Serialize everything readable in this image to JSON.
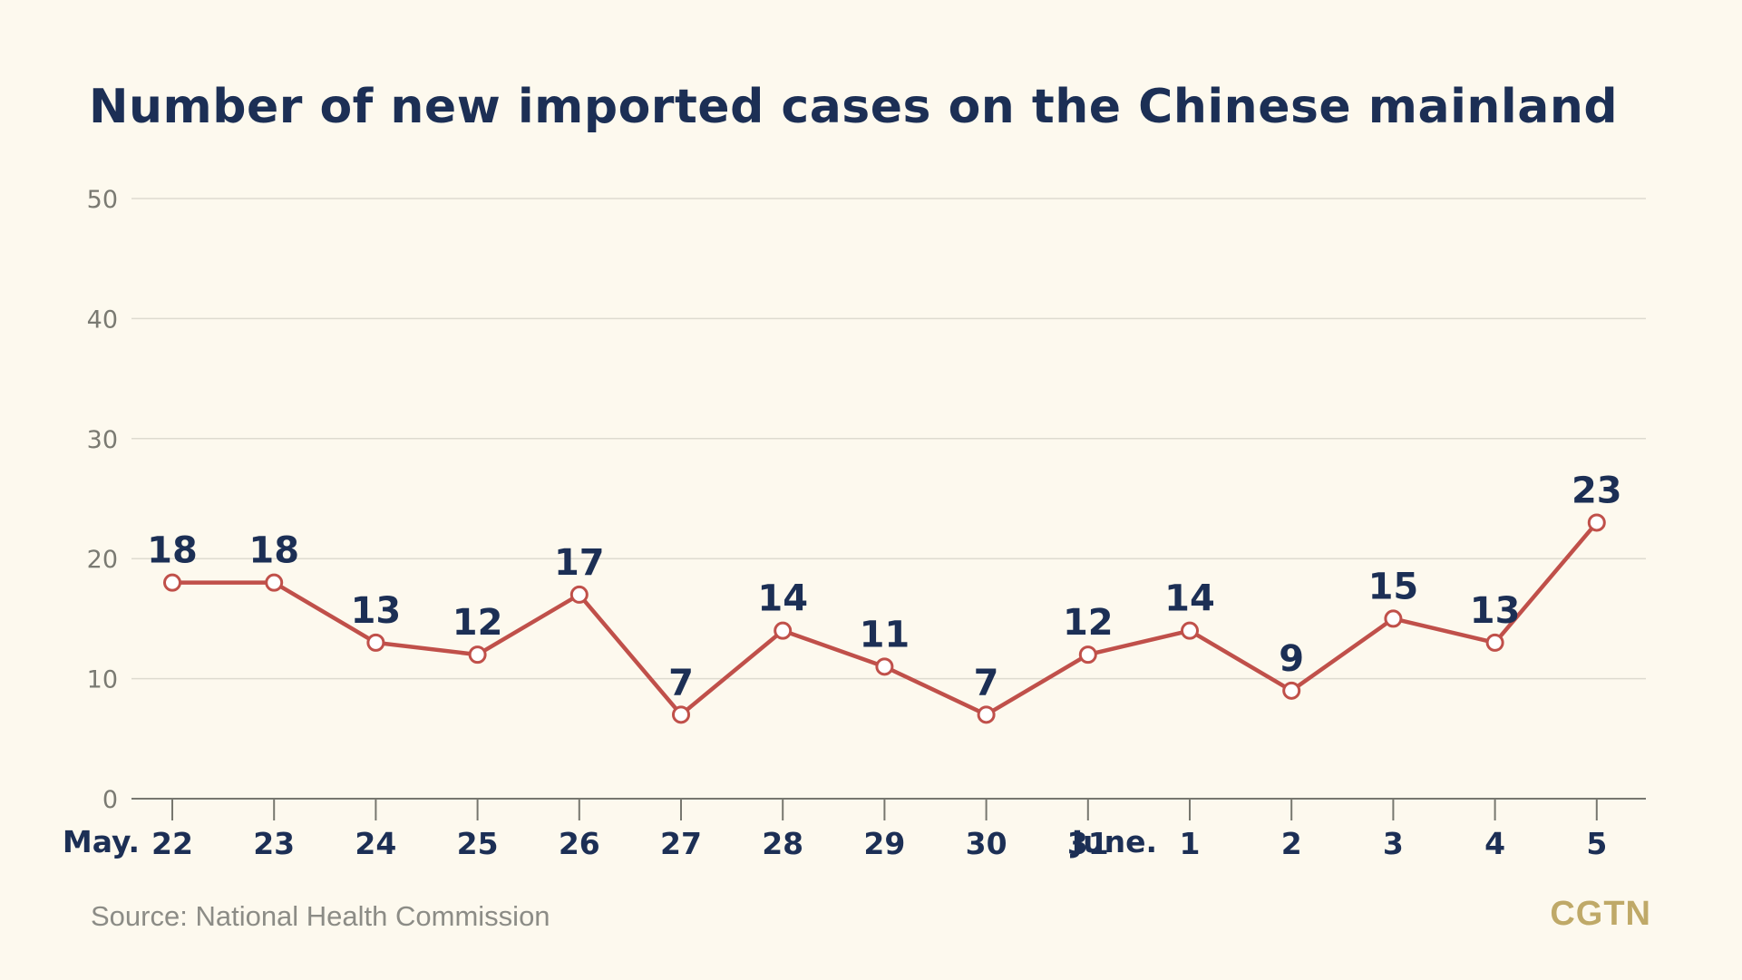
{
  "chart_data": {
    "type": "line",
    "title": "Number of new imported cases on the Chinese mainland",
    "categories": [
      "22",
      "23",
      "24",
      "25",
      "26",
      "27",
      "28",
      "29",
      "30",
      "31",
      "1",
      "2",
      "3",
      "4",
      "5"
    ],
    "month_labels": [
      {
        "index": 0,
        "text": "May."
      },
      {
        "index": 10,
        "text": "June."
      }
    ],
    "series": [
      {
        "values": [
          18,
          18,
          13,
          12,
          17,
          7,
          14,
          11,
          7,
          12,
          14,
          9,
          15,
          13,
          23
        ]
      }
    ],
    "yticks": [
      0,
      10,
      20,
      30,
      40,
      50
    ],
    "ylim": [
      0,
      50
    ],
    "grid": true,
    "colors": {
      "line": "#c0504a",
      "marker_fill": "#ffffff",
      "labels": "#1c2f55",
      "grid": "#dedbd0",
      "axis": "#77776f"
    }
  },
  "footer": {
    "source": "Source: National Health Commission",
    "brand": "CGTN"
  }
}
